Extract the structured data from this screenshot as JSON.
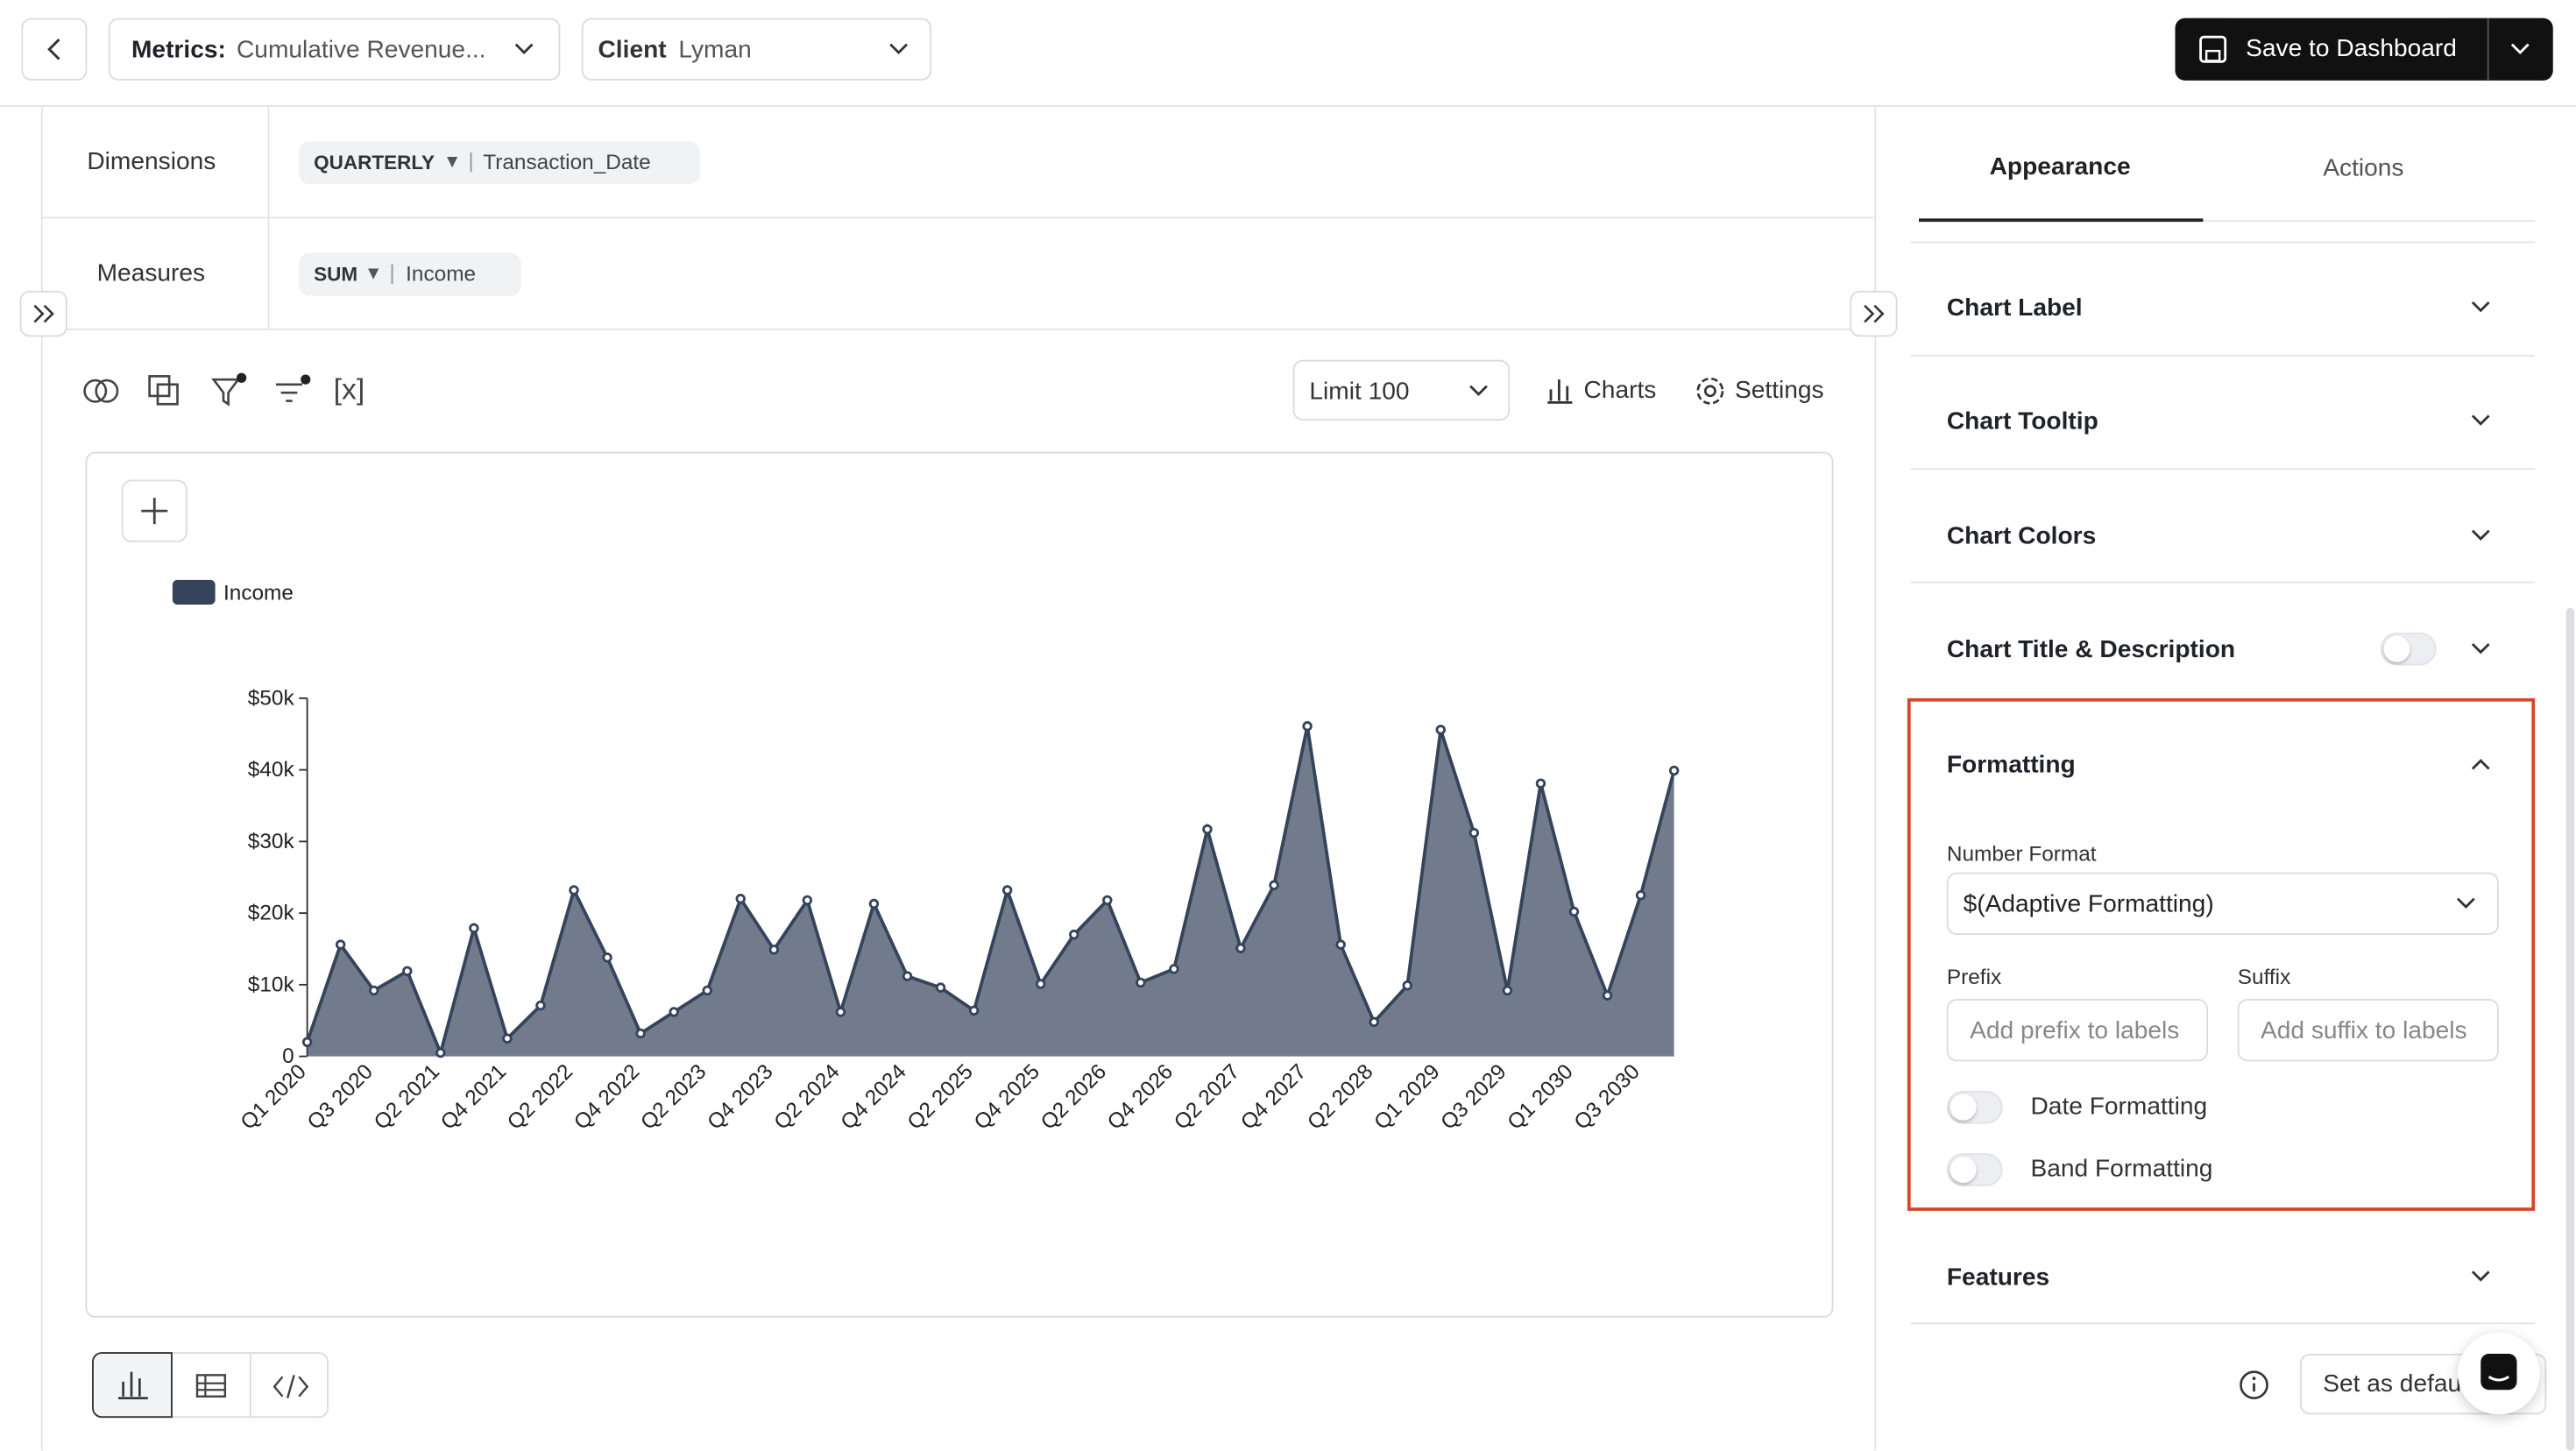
{
  "header": {
    "metrics_label": "Metrics:",
    "metrics_value": "Cumulative Revenue...",
    "client_label": "Client",
    "client_value": "Lyman",
    "save_button": "Save to Dashboard"
  },
  "query": {
    "dimensions_label": "Dimensions",
    "dimension_granularity": "QUARTERLY",
    "dimension_field": "Transaction_Date",
    "measures_label": "Measures",
    "measure_aggregation": "SUM",
    "measure_field": "Income"
  },
  "toolbar": {
    "variables": "[x]",
    "limit": "Limit 100",
    "charts": "Charts",
    "settings": "Settings"
  },
  "chart_data": {
    "type": "area",
    "categories": [
      "Q1 2020",
      null,
      "Q3 2020",
      null,
      "Q2 2021",
      null,
      "Q4 2021",
      null,
      "Q2 2022",
      null,
      "Q4 2022",
      null,
      "Q2 2023",
      null,
      "Q4 2023",
      null,
      "Q2 2024",
      null,
      "Q4 2024",
      null,
      "Q2 2025",
      null,
      "Q4 2025",
      null,
      "Q2 2026",
      null,
      "Q4 2026",
      null,
      "Q2 2027",
      null,
      "Q4 2027",
      null,
      "Q2 2028",
      null,
      "Q1 2029",
      null,
      "Q3 2029",
      null,
      "Q1 2030",
      null,
      "Q3 2030",
      null
    ],
    "series": [
      {
        "name": "Income",
        "color": "#35435b",
        "values": [
          2000,
          15600,
          9200,
          11900,
          500,
          17900,
          2500,
          7100,
          23200,
          13800,
          3200,
          6200,
          9200,
          22000,
          14900,
          21800,
          6200,
          21300,
          11200,
          9600,
          6400,
          23200,
          10100,
          17000,
          21800,
          10300,
          12200,
          31700,
          15100,
          23900,
          46100,
          15600,
          4800,
          9900,
          45600,
          31200,
          9200,
          38100,
          20200,
          8500,
          22500,
          39900
        ]
      }
    ],
    "ylim": [
      0,
      50000
    ],
    "yticks": [
      0,
      {
        "value": 10000,
        "label": "$10k"
      },
      {
        "value": 20000,
        "label": "$20k"
      },
      {
        "value": 30000,
        "label": "$30k"
      },
      {
        "value": 40000,
        "label": "$40k"
      },
      {
        "value": 50000,
        "label": "$50k"
      }
    ]
  },
  "panel": {
    "tabs": [
      "Appearance",
      "Actions"
    ],
    "sections": [
      "Chart Label",
      "Chart Tooltip",
      "Chart Colors",
      "Chart Title & Description"
    ],
    "formatting": {
      "title": "Formatting",
      "number_format_label": "Number Format",
      "number_format_value": "$(Adaptive Formatting)",
      "prefix_label": "Prefix",
      "prefix_placeholder": "Add prefix to labels",
      "suffix_label": "Suffix",
      "suffix_placeholder": "Add suffix to labels",
      "date_formatting": "Date Formatting",
      "band_formatting": "Band Formatting"
    },
    "features": "Features",
    "set_default": "Set as default"
  }
}
